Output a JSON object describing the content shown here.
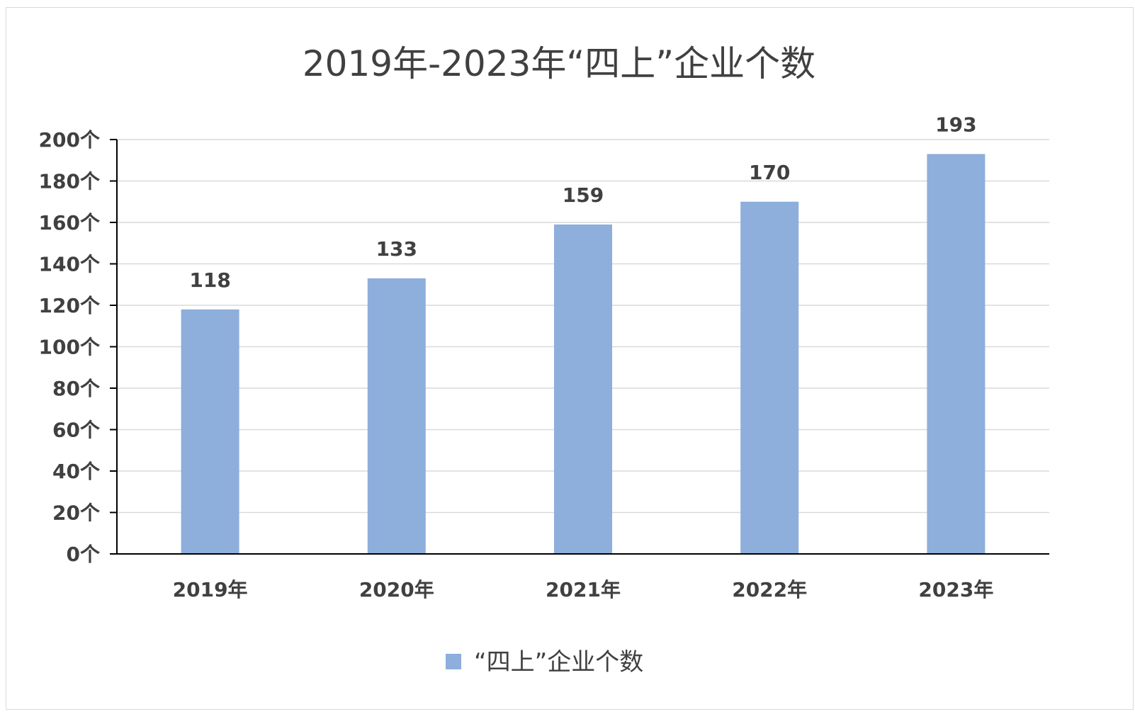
{
  "chart_data": {
    "type": "bar",
    "title": "2019年-2023年“四上”企业个数",
    "categories": [
      "2019年",
      "2020年",
      "2021年",
      "2022年",
      "2023年"
    ],
    "series": [
      {
        "name": "“四上”企业个数",
        "values": [
          118,
          133,
          159,
          170,
          193
        ],
        "color": "#8eaedb"
      }
    ],
    "y_ticks": [
      "0个",
      "20个",
      "40个",
      "60个",
      "80个",
      "100个",
      "120个",
      "140个",
      "160个",
      "180个",
      "200个"
    ],
    "ylim": [
      0,
      200
    ],
    "y_step": 20,
    "grid": true,
    "legend_position": "bottom",
    "data_labels": true
  },
  "colors": {
    "bar": "#8eaedb",
    "grid": "#d9d9d9",
    "axis": "#000000",
    "text": "#404040"
  }
}
